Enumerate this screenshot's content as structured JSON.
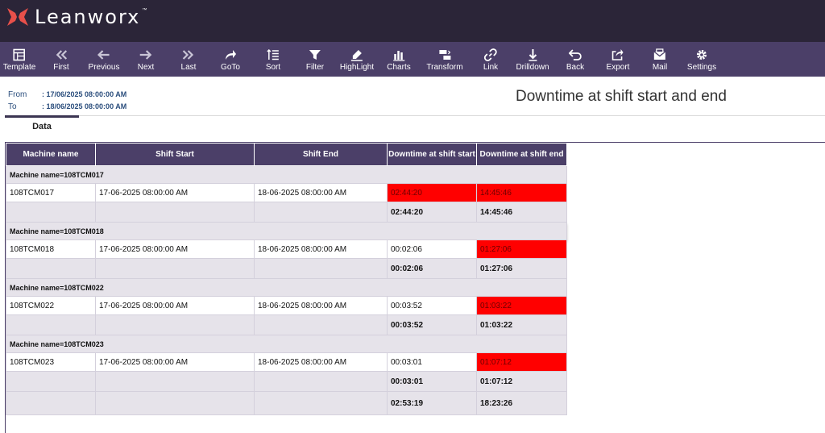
{
  "app": {
    "name": "Leanworx",
    "tm": "™"
  },
  "toolbar": {
    "items": [
      {
        "label": "Template",
        "icon": "template-icon"
      },
      {
        "label": "First",
        "icon": "first-icon"
      },
      {
        "label": "Previous",
        "icon": "previous-icon"
      },
      {
        "label": "Next",
        "icon": "next-icon"
      },
      {
        "label": "Last",
        "icon": "last-icon"
      },
      {
        "label": "GoTo",
        "icon": "goto-icon"
      },
      {
        "label": "Sort",
        "icon": "sort-icon"
      },
      {
        "label": "Filter",
        "icon": "filter-icon"
      },
      {
        "label": "HighLight",
        "icon": "highlight-icon"
      },
      {
        "label": "Charts",
        "icon": "charts-icon"
      },
      {
        "label": "Transform",
        "icon": "transform-icon"
      },
      {
        "label": "Link",
        "icon": "link-icon"
      },
      {
        "label": "Drilldown",
        "icon": "drilldown-icon"
      },
      {
        "label": "Back",
        "icon": "back-icon"
      },
      {
        "label": "Export",
        "icon": "export-icon"
      },
      {
        "label": "Mail",
        "icon": "mail-icon"
      },
      {
        "label": "Settings",
        "icon": "settings-icon"
      }
    ]
  },
  "range": {
    "from_label": "From",
    "from_value": ": 17/06/2025 08:00:00 AM",
    "to_label": "To",
    "to_value": ": 18/06/2025 08:00:00 AM"
  },
  "report": {
    "title": "Downtime at shift start and end"
  },
  "tabs": {
    "data": "Data"
  },
  "table": {
    "headers": {
      "machine": "Machine name",
      "shift_start": "Shift Start",
      "shift_end": "Shift End",
      "dt_start": "Downtime at shift start",
      "dt_end": "Downtime at shift end"
    },
    "groups": [
      {
        "title": "Machine name=108TCM017",
        "machine": "108TCM017",
        "shift_start": "17-06-2025 08:00:00 AM",
        "shift_end": "18-06-2025 08:00:00 AM",
        "dt_start": "02:44:20",
        "dt_end": "14:45:46",
        "sub_start": "02:44:20",
        "sub_end": "14:45:46"
      },
      {
        "title": "Machine name=108TCM018",
        "machine": "108TCM018",
        "shift_start": "17-06-2025 08:00:00 AM",
        "shift_end": "18-06-2025 08:00:00 AM",
        "dt_start": "00:02:06",
        "dt_end": "01:27:06",
        "sub_start": "00:02:06",
        "sub_end": "01:27:06"
      },
      {
        "title": "Machine name=108TCM022",
        "machine": "108TCM022",
        "shift_start": "17-06-2025 08:00:00 AM",
        "shift_end": "18-06-2025 08:00:00 AM",
        "dt_start": "00:03:52",
        "dt_end": "01:03:22",
        "sub_start": "00:03:52",
        "sub_end": "01:03:22"
      },
      {
        "title": "Machine name=108TCM023",
        "machine": "108TCM023",
        "shift_start": "17-06-2025 08:00:00 AM",
        "shift_end": "18-06-2025 08:00:00 AM",
        "dt_start": "00:03:01",
        "dt_end": "01:07:12",
        "sub_start": "00:03:01",
        "sub_end": "01:07:12"
      }
    ],
    "total": {
      "dt_start": "02:53:19",
      "dt_end": "18:23:26"
    }
  },
  "colors": {
    "topbar": "#2b2538",
    "toolbar": "#4b3f68",
    "logo_accent": "#e8504a",
    "highlight": "#ff0000"
  }
}
